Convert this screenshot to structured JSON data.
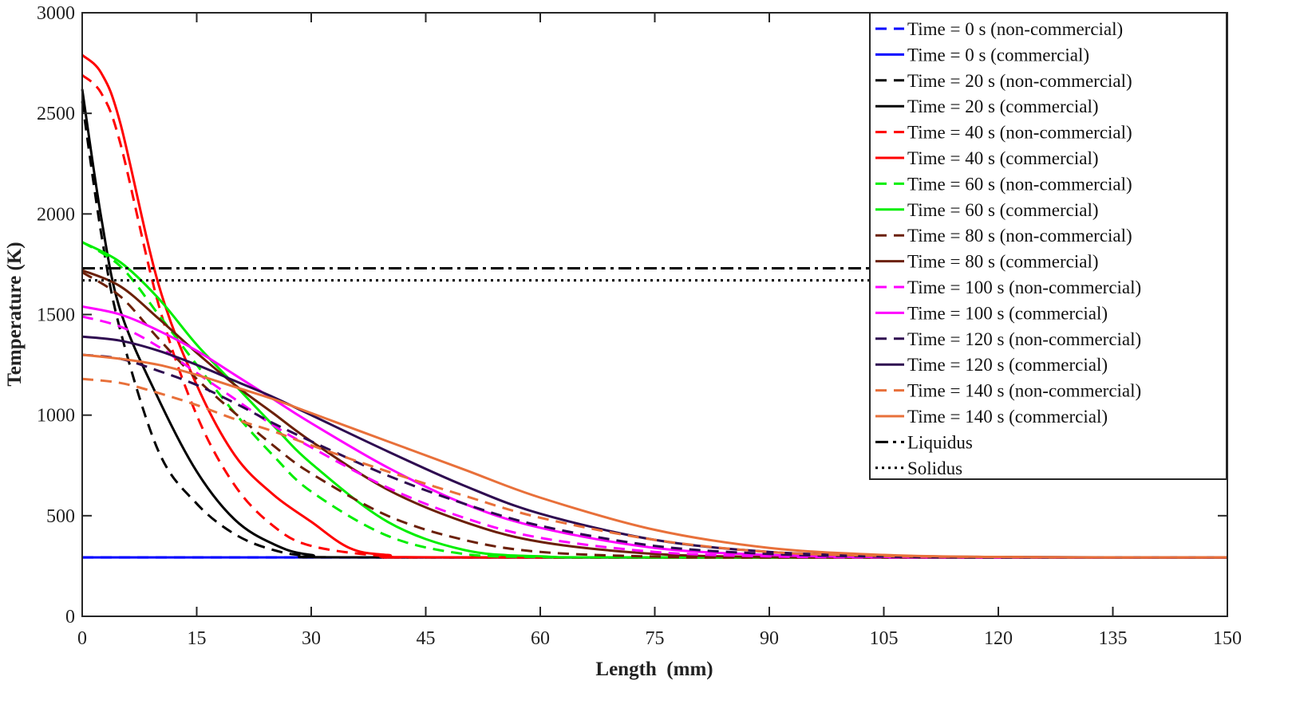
{
  "chart_data": {
    "type": "line",
    "title": "",
    "xlabel": "Length  (mm)",
    "ylabel": "Temperature (K)",
    "xlim": [
      0,
      150
    ],
    "ylim": [
      0,
      3000
    ],
    "xticks": [
      0,
      15,
      30,
      45,
      60,
      75,
      90,
      105,
      120,
      135,
      150
    ],
    "yticks": [
      0,
      500,
      1000,
      1500,
      2000,
      2500,
      3000
    ],
    "grid": false,
    "legend_position": "top-right",
    "series": [
      {
        "name": "Time = 0 s  (non-commercial)",
        "color": "#0000ff",
        "style": "dashed",
        "points": [
          [
            0,
            293
          ],
          [
            150,
            293
          ]
        ]
      },
      {
        "name": "Time = 0 s  (commercial)",
        "color": "#0000ff",
        "style": "solid",
        "points": [
          [
            0,
            293
          ],
          [
            150,
            293
          ]
        ]
      },
      {
        "name": "Time = 20 s  (non-commercial)",
        "color": "#000000",
        "style": "dashed",
        "points": [
          [
            0,
            2560
          ],
          [
            2.5,
            1900
          ],
          [
            5,
            1420
          ],
          [
            10,
            820
          ],
          [
            15,
            560
          ],
          [
            20,
            408
          ],
          [
            25,
            330
          ],
          [
            30,
            300
          ],
          [
            40,
            293
          ],
          [
            150,
            293
          ]
        ]
      },
      {
        "name": "Time = 20 s  (commercial)",
        "color": "#000000",
        "style": "solid",
        "points": [
          [
            0,
            2620
          ],
          [
            2.5,
            1980
          ],
          [
            5,
            1520
          ],
          [
            10,
            1080
          ],
          [
            15,
            720
          ],
          [
            20,
            480
          ],
          [
            25,
            360
          ],
          [
            30,
            305
          ],
          [
            40,
            293
          ],
          [
            150,
            293
          ]
        ]
      },
      {
        "name": "Time = 40 s  (non-commercial)",
        "color": "#ff0000",
        "style": "dashed",
        "points": [
          [
            0,
            2690
          ],
          [
            2.5,
            2600
          ],
          [
            5,
            2350
          ],
          [
            10,
            1550
          ],
          [
            15,
            1000
          ],
          [
            20,
            650
          ],
          [
            25,
            450
          ],
          [
            30,
            350
          ],
          [
            40,
            298
          ],
          [
            50,
            293
          ],
          [
            150,
            293
          ]
        ]
      },
      {
        "name": "Time = 40 s  (commercial)",
        "color": "#ff0000",
        "style": "solid",
        "points": [
          [
            0,
            2790
          ],
          [
            2.5,
            2700
          ],
          [
            5,
            2450
          ],
          [
            10,
            1650
          ],
          [
            15,
            1150
          ],
          [
            20,
            800
          ],
          [
            25,
            606
          ],
          [
            30,
            470
          ],
          [
            35,
            340
          ],
          [
            40,
            305
          ],
          [
            50,
            293
          ],
          [
            150,
            293
          ]
        ]
      },
      {
        "name": "Time = 60 s  (non-commercial)",
        "color": "#00ee00",
        "style": "dashed",
        "points": [
          [
            0,
            1860
          ],
          [
            5,
            1740
          ],
          [
            10,
            1500
          ],
          [
            15,
            1250
          ],
          [
            20,
            1010
          ],
          [
            25,
            800
          ],
          [
            30,
            620
          ],
          [
            40,
            400
          ],
          [
            50,
            310
          ],
          [
            60,
            295
          ],
          [
            75,
            293
          ],
          [
            150,
            293
          ]
        ]
      },
      {
        "name": "Time = 60 s  (commercial)",
        "color": "#00ee00",
        "style": "solid",
        "points": [
          [
            0,
            1860
          ],
          [
            5,
            1760
          ],
          [
            10,
            1580
          ],
          [
            15,
            1350
          ],
          [
            20,
            1150
          ],
          [
            25,
            950
          ],
          [
            30,
            760
          ],
          [
            40,
            470
          ],
          [
            50,
            330
          ],
          [
            60,
            298
          ],
          [
            75,
            293
          ],
          [
            150,
            293
          ]
        ]
      },
      {
        "name": "Time = 80 s  (non-commercial)",
        "color": "#6b2008",
        "style": "dashed",
        "points": [
          [
            0,
            1710
          ],
          [
            5,
            1590
          ],
          [
            10,
            1380
          ],
          [
            15,
            1180
          ],
          [
            20,
            1010
          ],
          [
            25,
            850
          ],
          [
            30,
            710
          ],
          [
            40,
            500
          ],
          [
            50,
            380
          ],
          [
            60,
            320
          ],
          [
            75,
            297
          ],
          [
            90,
            293
          ],
          [
            150,
            293
          ]
        ]
      },
      {
        "name": "Time = 80 s  (commercial)",
        "color": "#6b2008",
        "style": "solid",
        "points": [
          [
            0,
            1720
          ],
          [
            5,
            1640
          ],
          [
            10,
            1480
          ],
          [
            15,
            1310
          ],
          [
            20,
            1150
          ],
          [
            25,
            1010
          ],
          [
            30,
            870
          ],
          [
            40,
            630
          ],
          [
            50,
            470
          ],
          [
            60,
            370
          ],
          [
            75,
            310
          ],
          [
            90,
            295
          ],
          [
            105,
            293
          ],
          [
            150,
            293
          ]
        ]
      },
      {
        "name": "Time = 100 s  (non-commercial)",
        "color": "#ff00ff",
        "style": "dashed",
        "points": [
          [
            0,
            1490
          ],
          [
            5,
            1440
          ],
          [
            10,
            1340
          ],
          [
            15,
            1210
          ],
          [
            20,
            1080
          ],
          [
            25,
            950
          ],
          [
            30,
            840
          ],
          [
            40,
            640
          ],
          [
            50,
            490
          ],
          [
            60,
            390
          ],
          [
            75,
            320
          ],
          [
            90,
            298
          ],
          [
            105,
            293
          ],
          [
            150,
            293
          ]
        ]
      },
      {
        "name": "Time = 100 s  (commercial)",
        "color": "#ff00ff",
        "style": "solid",
        "points": [
          [
            0,
            1540
          ],
          [
            5,
            1500
          ],
          [
            10,
            1420
          ],
          [
            15,
            1320
          ],
          [
            20,
            1200
          ],
          [
            25,
            1080
          ],
          [
            30,
            960
          ],
          [
            40,
            740
          ],
          [
            50,
            560
          ],
          [
            60,
            440
          ],
          [
            75,
            340
          ],
          [
            90,
            305
          ],
          [
            105,
            295
          ],
          [
            120,
            293
          ],
          [
            150,
            293
          ]
        ]
      },
      {
        "name": "Time = 120 s  (non-commercial)",
        "color": "#2e0a50",
        "style": "dashed",
        "points": [
          [
            0,
            1300
          ],
          [
            5,
            1280
          ],
          [
            10,
            1220
          ],
          [
            15,
            1150
          ],
          [
            20,
            1060
          ],
          [
            25,
            960
          ],
          [
            30,
            870
          ],
          [
            40,
            700
          ],
          [
            50,
            560
          ],
          [
            60,
            450
          ],
          [
            75,
            350
          ],
          [
            90,
            310
          ],
          [
            105,
            297
          ],
          [
            120,
            293
          ],
          [
            150,
            293
          ]
        ]
      },
      {
        "name": "Time = 120 s  (commercial)",
        "color": "#2e0a50",
        "style": "solid",
        "points": [
          [
            0,
            1390
          ],
          [
            5,
            1370
          ],
          [
            10,
            1320
          ],
          [
            15,
            1250
          ],
          [
            20,
            1170
          ],
          [
            25,
            1090
          ],
          [
            30,
            1000
          ],
          [
            40,
            820
          ],
          [
            50,
            650
          ],
          [
            60,
            510
          ],
          [
            75,
            380
          ],
          [
            90,
            320
          ],
          [
            105,
            300
          ],
          [
            120,
            295
          ],
          [
            135,
            293
          ],
          [
            150,
            293
          ]
        ]
      },
      {
        "name": "Time = 140 s  (non-commercial)",
        "color": "#e8703a",
        "style": "dashed",
        "points": [
          [
            0,
            1180
          ],
          [
            5,
            1160
          ],
          [
            10,
            1110
          ],
          [
            15,
            1050
          ],
          [
            20,
            980
          ],
          [
            25,
            920
          ],
          [
            30,
            850
          ],
          [
            40,
            720
          ],
          [
            50,
            600
          ],
          [
            60,
            490
          ],
          [
            75,
            380
          ],
          [
            90,
            320
          ],
          [
            105,
            300
          ],
          [
            120,
            295
          ],
          [
            135,
            293
          ],
          [
            150,
            293
          ]
        ]
      },
      {
        "name": "Time = 140 s  (commercial)",
        "color": "#e8703a",
        "style": "solid",
        "points": [
          [
            0,
            1300
          ],
          [
            5,
            1280
          ],
          [
            10,
            1250
          ],
          [
            15,
            1200
          ],
          [
            20,
            1140
          ],
          [
            25,
            1080
          ],
          [
            30,
            1010
          ],
          [
            40,
            870
          ],
          [
            50,
            730
          ],
          [
            60,
            590
          ],
          [
            75,
            430
          ],
          [
            90,
            340
          ],
          [
            105,
            305
          ],
          [
            120,
            295
          ],
          [
            135,
            293
          ],
          [
            150,
            293
          ]
        ]
      },
      {
        "name": "Liquidus",
        "color": "#000000",
        "style": "dashdot",
        "points": [
          [
            0,
            1730
          ],
          [
            150,
            1730
          ]
        ]
      },
      {
        "name": "Solidus",
        "color": "#000000",
        "style": "dotted",
        "points": [
          [
            0,
            1670
          ],
          [
            150,
            1670
          ]
        ]
      }
    ]
  }
}
